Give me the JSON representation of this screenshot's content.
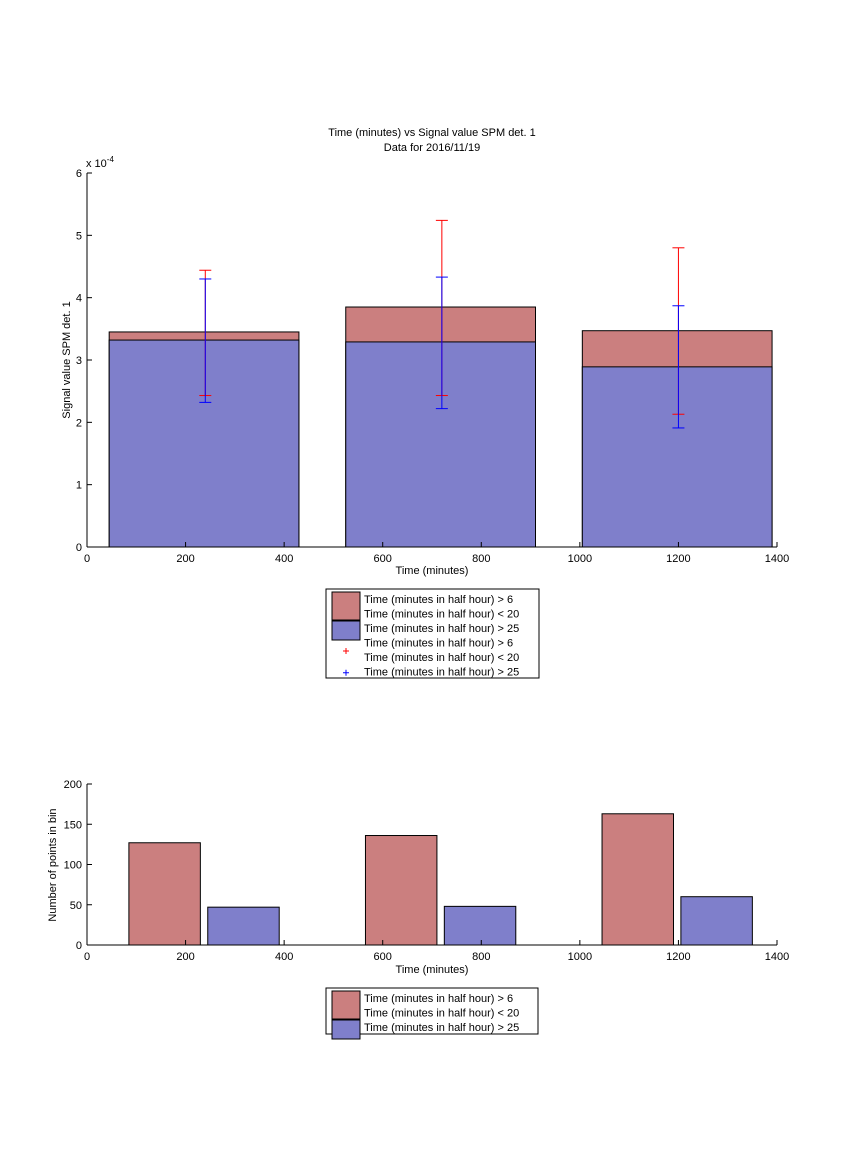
{
  "colors": {
    "red_fill": "#cb7f7f",
    "blue_fill": "#7f7fcb",
    "red_err": "#ff0000",
    "blue_err": "#0000ff",
    "axis": "#000000"
  },
  "chart_data": [
    {
      "type": "bar",
      "title": "Time (minutes) vs Signal value SPM det. 1",
      "subtitle": "Data for 2016/11/19",
      "xlabel": "Time (minutes)",
      "ylabel": "Signal value SPM det. 1",
      "y_exponent_label": "x 10",
      "y_exponent_power": "-4",
      "xlim": [
        0,
        1400
      ],
      "ylim": [
        0,
        6
      ],
      "xticks": [
        "0",
        "200",
        "400",
        "600",
        "800",
        "1000",
        "1200",
        "1400"
      ],
      "yticks": [
        "0",
        "1",
        "2",
        "3",
        "4",
        "5",
        "6"
      ],
      "bar_ranges": [
        [
          45,
          430
        ],
        [
          525,
          910
        ],
        [
          1005,
          1390
        ]
      ],
      "series": [
        {
          "name": "Time (minutes in half hour) > 6\nTime (minutes in half hour) < 20",
          "color": "#cb7f7f",
          "values": [
            3.45,
            3.85,
            3.47
          ]
        },
        {
          "name": "Time (minutes in half hour) > 25",
          "color": "#7f7fcb",
          "values": [
            3.32,
            3.29,
            2.89
          ]
        }
      ],
      "errorbars": [
        {
          "name": "Time (minutes in half hour) > 6\nTime (minutes in half hour) < 20",
          "color": "#ff0000",
          "x": [
            240,
            720,
            1200
          ],
          "low": [
            2.43,
            2.43,
            2.13
          ],
          "high": [
            4.44,
            5.24,
            4.8
          ]
        },
        {
          "name": "Time (minutes in half hour) > 25",
          "color": "#0000ff",
          "x": [
            240,
            720,
            1200
          ],
          "low": [
            2.32,
            2.22,
            1.91
          ],
          "high": [
            4.3,
            4.33,
            3.87
          ]
        }
      ],
      "legend": [
        {
          "kind": "patch",
          "color": "#cb7f7f",
          "lines": [
            "Time (minutes in half hour) > 6",
            "Time (minutes in half hour) < 20"
          ]
        },
        {
          "kind": "patch",
          "color": "#7f7fcb",
          "lines": [
            "Time (minutes in half hour) > 25"
          ]
        },
        {
          "kind": "marker",
          "color": "#ff0000",
          "lines": [
            "Time (minutes in half hour) > 6",
            "Time (minutes in half hour) < 20"
          ]
        },
        {
          "kind": "marker",
          "color": "#0000ff",
          "lines": [
            "Time (minutes in half hour) > 25"
          ]
        }
      ]
    },
    {
      "type": "bar",
      "xlabel": "Time (minutes)",
      "ylabel": "Number of points in bin",
      "xlim": [
        0,
        1400
      ],
      "ylim": [
        0,
        200
      ],
      "xticks": [
        "0",
        "200",
        "400",
        "600",
        "800",
        "1000",
        "1200",
        "1400"
      ],
      "yticks": [
        "0",
        "50",
        "100",
        "150",
        "200"
      ],
      "series": [
        {
          "name": "Time (minutes in half hour) > 6\nTime (minutes in half hour) < 20",
          "color": "#cb7f7f",
          "x_ranges": [
            [
              85,
              230
            ],
            [
              565,
              710
            ],
            [
              1045,
              1190
            ]
          ],
          "values": [
            127,
            136,
            163
          ]
        },
        {
          "name": "Time (minutes in half hour) > 25",
          "color": "#7f7fcb",
          "x_ranges": [
            [
              245,
              390
            ],
            [
              725,
              870
            ],
            [
              1205,
              1350
            ]
          ],
          "values": [
            47,
            48,
            60
          ]
        }
      ],
      "legend": [
        {
          "kind": "patch",
          "color": "#cb7f7f",
          "lines": [
            "Time (minutes in half hour) > 6",
            "Time (minutes in half hour) < 20"
          ]
        },
        {
          "kind": "patch",
          "color": "#7f7fcb",
          "lines": [
            "Time (minutes in half hour) > 25"
          ]
        }
      ]
    }
  ]
}
